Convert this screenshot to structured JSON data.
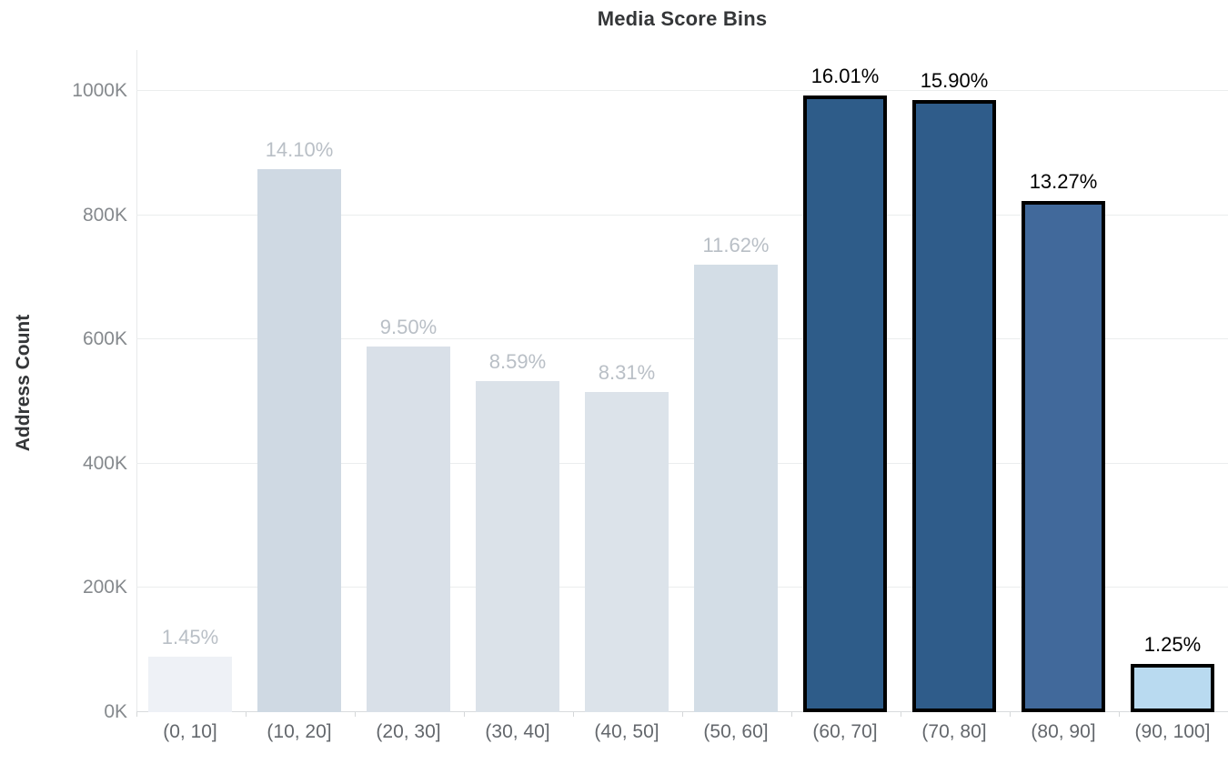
{
  "colors": {
    "background": "#ffffff",
    "title_text": "#343638",
    "y_tick_text": "#85898d",
    "x_tick_text": "#63676c",
    "gridline": "#ebedee",
    "baseline": "#d9dbdd",
    "muted_value_label": "#b9bfc6",
    "highlight_value_label": "#000000",
    "highlight_outline": "#000000"
  },
  "chart_data": {
    "type": "bar",
    "title": "Media Score Bins",
    "xlabel": "",
    "ylabel": "Address Count",
    "categories": [
      "(0, 10]",
      "(10, 20]",
      "(20, 30]",
      "(30, 40]",
      "(40, 50]",
      "(50, 60]",
      "(60, 70]",
      "(70, 80]",
      "(80, 90]",
      "(90, 100]"
    ],
    "values_k": [
      90,
      874,
      589,
      533,
      515,
      720,
      993,
      986,
      823,
      78
    ],
    "bar_labels": [
      "1.45%",
      "14.10%",
      "9.50%",
      "8.59%",
      "8.31%",
      "11.62%",
      "16.01%",
      "15.90%",
      "13.27%",
      "1.25%"
    ],
    "highlighted": [
      false,
      false,
      false,
      false,
      false,
      false,
      true,
      true,
      true,
      true
    ],
    "bar_colors": [
      "#eef1f6",
      "#cfd9e3",
      "#d9e0e8",
      "#dbe2e9",
      "#dce3ea",
      "#d3dde6",
      "#2e5c89",
      "#2f5c8a",
      "#41699b",
      "#b9daf0"
    ],
    "y_ticks": [
      "0K",
      "200K",
      "400K",
      "600K",
      "800K",
      "1000K"
    ],
    "y_tick_values_k": [
      0,
      200,
      400,
      600,
      800,
      1000
    ],
    "ylim_k": [
      0,
      1066
    ],
    "grid": "horizontal",
    "legend": "none"
  }
}
